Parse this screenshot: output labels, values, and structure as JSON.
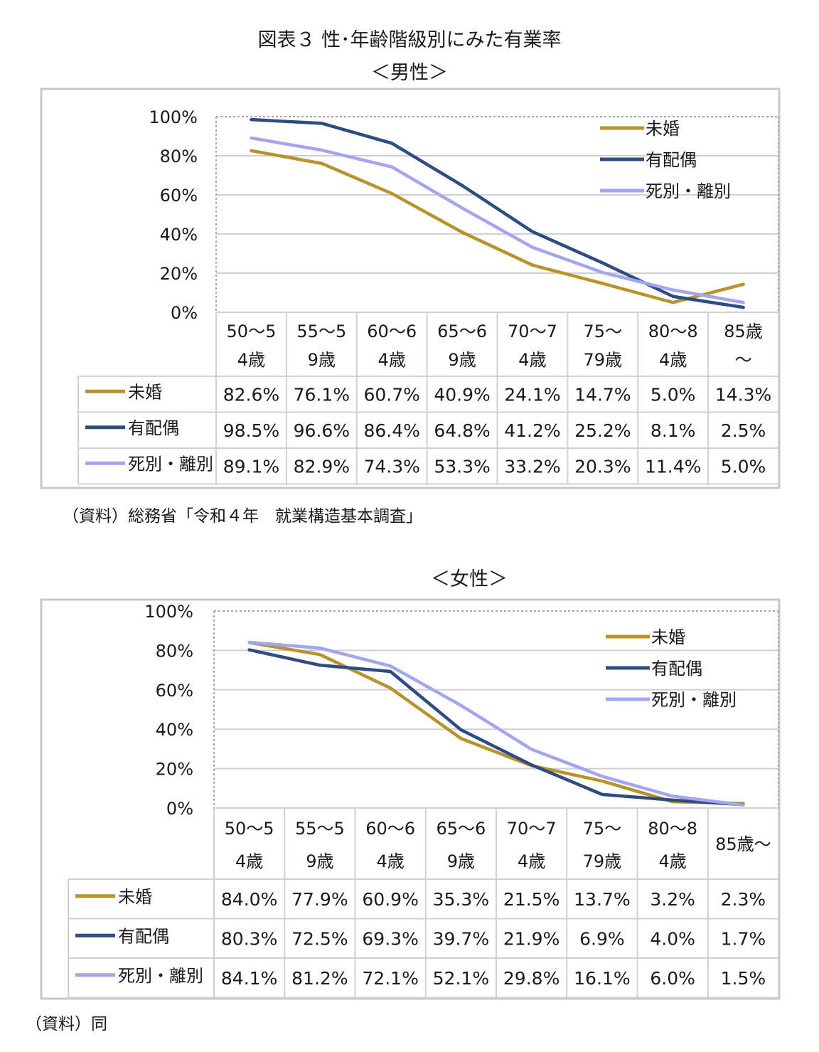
{
  "page": {
    "main_title": "図表３ 性･年齢階級別にみた有業率",
    "male_subtitle": "＜男性＞",
    "female_subtitle": "＜女性＞",
    "male_source": "（資料）総務省「令和４年　就業構造基本調査」",
    "female_source": "（資料）同"
  },
  "colors": {
    "unmarried": "#B8922A",
    "married": "#2F4C82",
    "widowed_divorced": "#A3A6EC",
    "grid": "#D0D0D0",
    "border": "#C8C8C8"
  },
  "chart_data": [
    {
      "type": "line",
      "title": "＜男性＞",
      "categories": [
        [
          "50～5",
          "4歳"
        ],
        [
          "55～5",
          "9歳"
        ],
        [
          "60～6",
          "4歳"
        ],
        [
          "65～6",
          "9歳"
        ],
        [
          "70～7",
          "4歳"
        ],
        [
          "75～",
          "79歳"
        ],
        [
          "80～8",
          "4歳"
        ],
        [
          "85歳",
          "～"
        ]
      ],
      "yticks": [
        "0%",
        "20%",
        "40%",
        "60%",
        "80%",
        "100%"
      ],
      "ylim": [
        0,
        100
      ],
      "grid": true,
      "legend_position": "top-right",
      "series": [
        {
          "name": "未婚",
          "key": "unmarried",
          "values": [
            82.6,
            76.1,
            60.7,
            40.9,
            24.1,
            14.7,
            5.0,
            14.3
          ],
          "labels": [
            "82.6%",
            "76.1%",
            "60.7%",
            "40.9%",
            "24.1%",
            "14.7%",
            "5.0%",
            "14.3%"
          ]
        },
        {
          "name": "有配偶",
          "key": "married",
          "values": [
            98.5,
            96.6,
            86.4,
            64.8,
            41.2,
            25.2,
            8.1,
            2.5
          ],
          "labels": [
            "98.5%",
            "96.6%",
            "86.4%",
            "64.8%",
            "41.2%",
            "25.2%",
            "8.1%",
            "2.5%"
          ]
        },
        {
          "name": "死別・離別",
          "key": "widowed_divorced",
          "values": [
            89.1,
            82.9,
            74.3,
            53.3,
            33.2,
            20.3,
            11.4,
            5.0
          ],
          "labels": [
            "89.1%",
            "82.9%",
            "74.3%",
            "53.3%",
            "33.2%",
            "20.3%",
            "11.4%",
            "5.0%"
          ]
        }
      ]
    },
    {
      "type": "line",
      "title": "＜女性＞",
      "categories": [
        [
          "50～5",
          "4歳"
        ],
        [
          "55～5",
          "9歳"
        ],
        [
          "60～6",
          "4歳"
        ],
        [
          "65～6",
          "9歳"
        ],
        [
          "70～7",
          "4歳"
        ],
        [
          "75～",
          "79歳"
        ],
        [
          "80～8",
          "4歳"
        ],
        [
          "85歳～"
        ]
      ],
      "yticks": [
        "0%",
        "20%",
        "40%",
        "60%",
        "80%",
        "100%"
      ],
      "ylim": [
        0,
        100
      ],
      "grid": true,
      "legend_position": "top-right",
      "series": [
        {
          "name": "未婚",
          "key": "unmarried",
          "values": [
            84.0,
            77.9,
            60.9,
            35.3,
            21.5,
            13.7,
            3.2,
            2.3
          ],
          "labels": [
            "84.0%",
            "77.9%",
            "60.9%",
            "35.3%",
            "21.5%",
            "13.7%",
            "3.2%",
            "2.3%"
          ]
        },
        {
          "name": "有配偶",
          "key": "married",
          "values": [
            80.3,
            72.5,
            69.3,
            39.7,
            21.9,
            6.9,
            4.0,
            1.7
          ],
          "labels": [
            "80.3%",
            "72.5%",
            "69.3%",
            "39.7%",
            "21.9%",
            "6.9%",
            "4.0%",
            "1.7%"
          ]
        },
        {
          "name": "死別・離別",
          "key": "widowed_divorced",
          "values": [
            84.1,
            81.2,
            72.1,
            52.1,
            29.8,
            16.1,
            6.0,
            1.5
          ],
          "labels": [
            "84.1%",
            "81.2%",
            "72.1%",
            "52.1%",
            "29.8%",
            "16.1%",
            "6.0%",
            "1.5%"
          ]
        }
      ]
    }
  ]
}
